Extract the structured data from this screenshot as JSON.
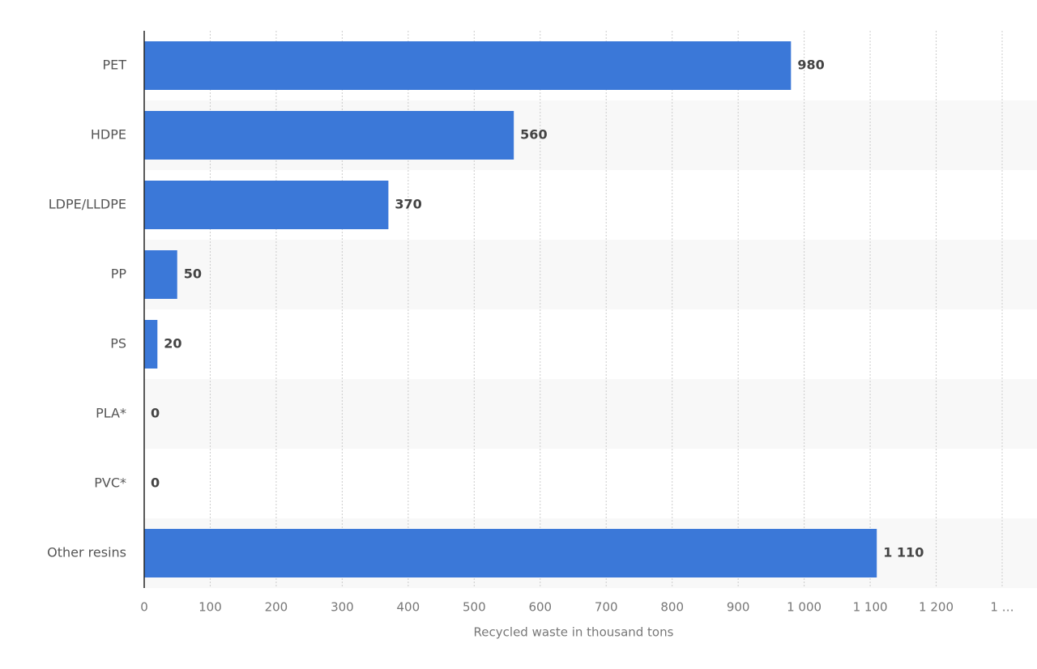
{
  "chart_data": {
    "type": "bar",
    "orientation": "horizontal",
    "categories": [
      "PET",
      "HDPE",
      "LDPE/LLDPE",
      "PP",
      "PS",
      "PLA*",
      "PVC*",
      "Other resins"
    ],
    "values": [
      980,
      560,
      370,
      50,
      20,
      0,
      0,
      1110
    ],
    "value_labels": [
      "980",
      "560",
      "370",
      "50",
      "20",
      "0",
      "0",
      "1 110"
    ],
    "color": "#3b78d8",
    "x_label": "Recycled waste in thousand tons",
    "xlim": [
      0,
      1300
    ],
    "xticks": [
      0,
      100,
      200,
      300,
      400,
      500,
      600,
      700,
      800,
      900,
      {
        "value": 1000,
        "label": "1 000"
      },
      {
        "value": 1100,
        "label": "1 100"
      },
      {
        "value": 1200,
        "label": "1 200"
      },
      {
        "value": 1300,
        "label": "1 …"
      }
    ],
    "grid": true
  }
}
